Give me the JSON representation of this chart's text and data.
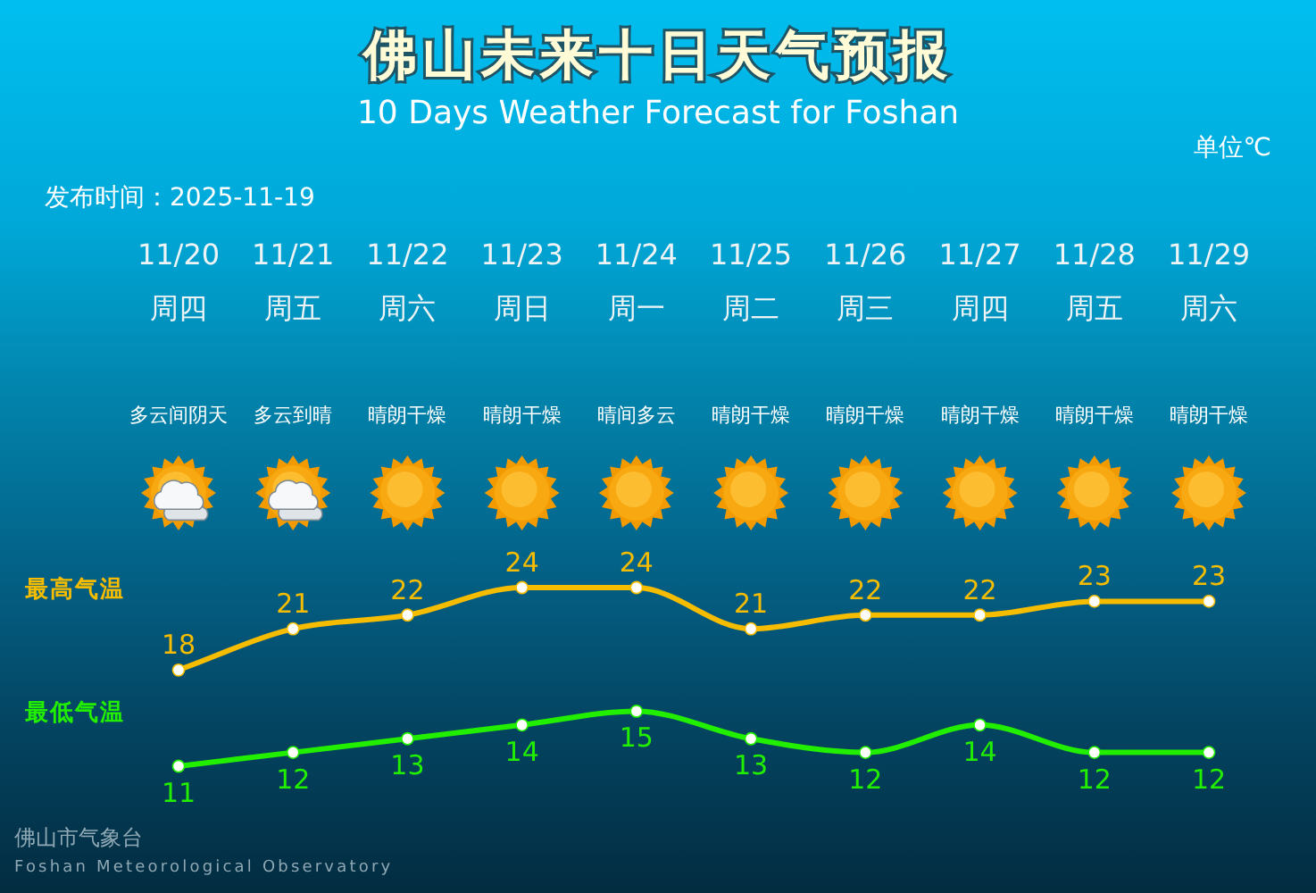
{
  "chart_data": {
    "type": "line",
    "title": "佛山未来十日天气预报",
    "subtitle": "10 Days Weather Forecast for Foshan",
    "categories": [
      "11/20\n周四",
      "11/21\n周五",
      "11/22\n周六",
      "11/23\n周日",
      "11/24\n周一",
      "11/25\n周二",
      "11/26\n周三",
      "11/27\n周四",
      "11/28\n周五",
      "11/29\n周六"
    ],
    "series": [
      {
        "name": "最高气温",
        "color": "#f5bc00",
        "values": [
          18,
          21,
          22,
          24,
          24,
          21,
          22,
          22,
          23,
          23
        ]
      },
      {
        "name": "最低气温",
        "color": "#22ee00",
        "values": [
          11,
          12,
          13,
          14,
          15,
          13,
          12,
          14,
          12,
          12
        ]
      }
    ],
    "data_labels": true,
    "marker": "circle",
    "line_style": "solid",
    "annotations": [
      "单位℃",
      "发布时间：2025-11-19",
      "多云间阴天",
      "多云到晴",
      "晴朗干燥",
      "晴朗干燥",
      "晴间多云",
      "晴朗干燥",
      "晴朗干燥",
      "晴朗干燥",
      "晴朗干燥",
      "晴朗干燥",
      "佛山市气象台",
      "Foshan Meteorological Observatory"
    ]
  }
}
